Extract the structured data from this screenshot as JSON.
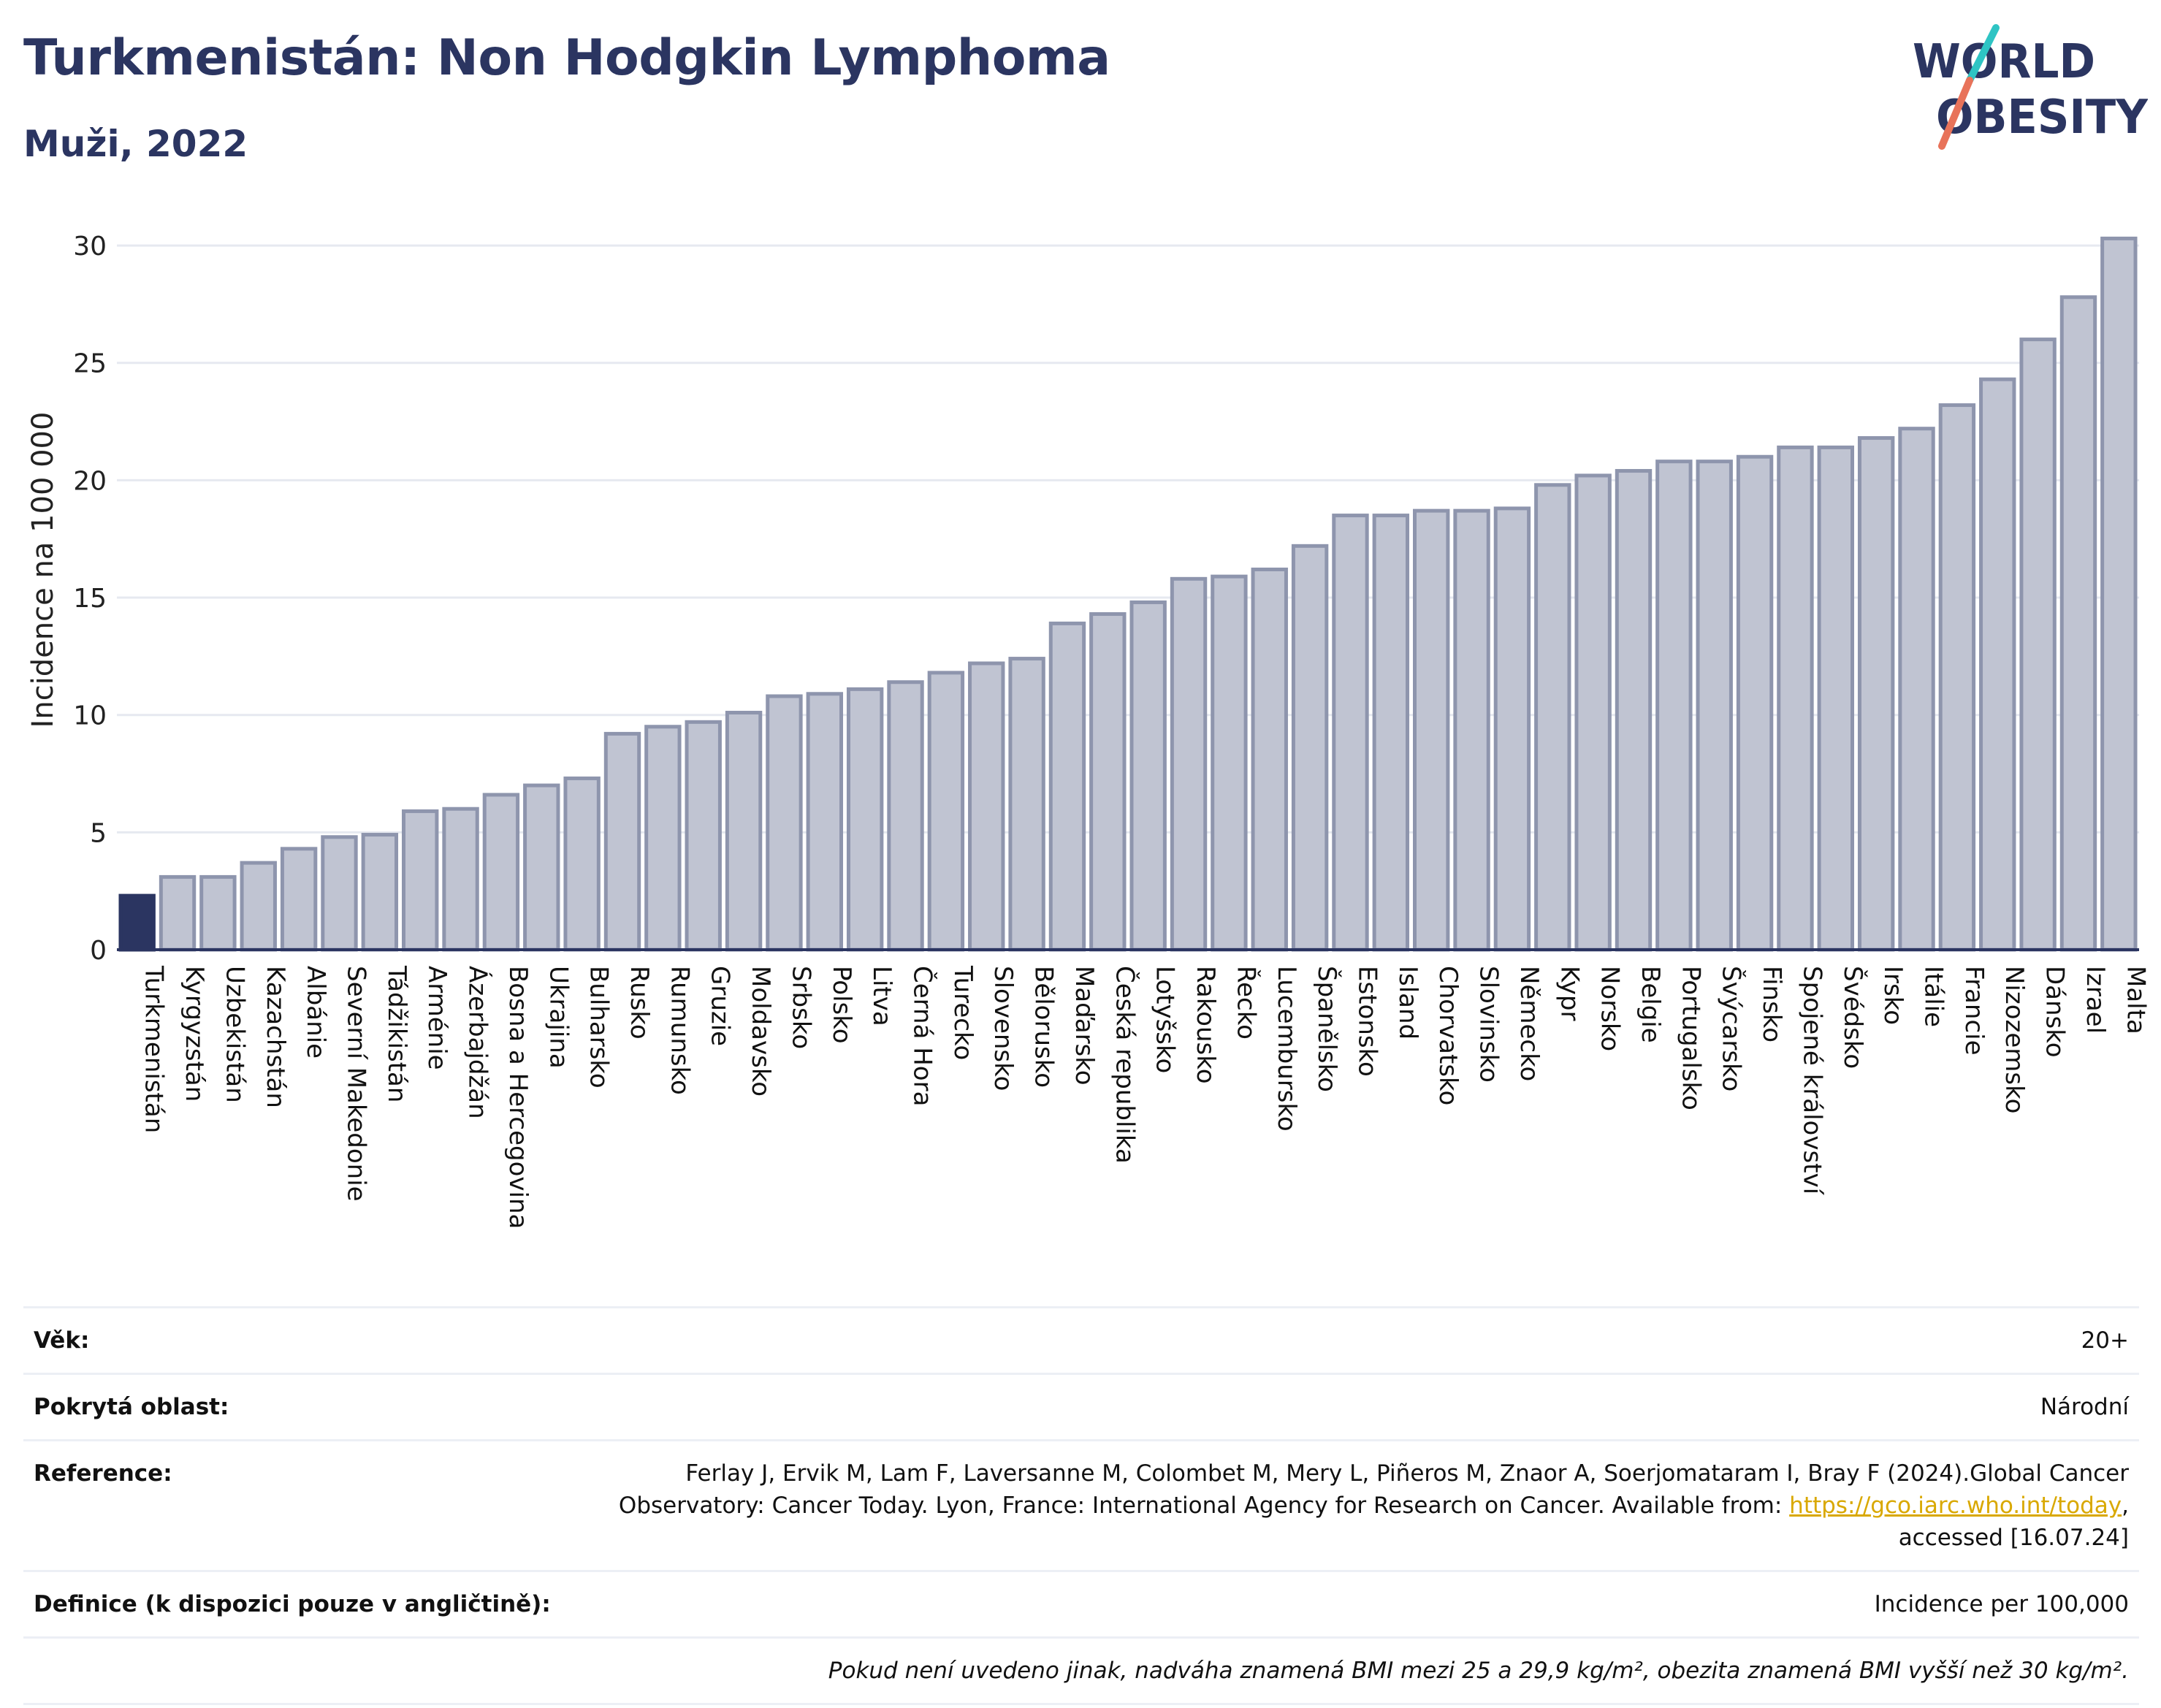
{
  "header": {
    "title": "Turkmenistán: Non Hodgkin Lymphoma",
    "subtitle": "Muži, 2022",
    "logo_text": "WORLD OBESITY"
  },
  "colors": {
    "title": "#2b3561",
    "highlight_bar": "#2b3561",
    "bar_fill": "#c0c4d2",
    "bar_stroke": "#8e95ad",
    "grid": "#e6e9f0",
    "axis": "#2b3561",
    "link": "#d9a800",
    "logo_slash_top": "#2ec4c4",
    "logo_slash_bottom": "#e8735a"
  },
  "chart_data": {
    "type": "bar",
    "title": "Turkmenistán: Non Hodgkin Lymphoma",
    "subtitle": "Muži, 2022",
    "ylabel": "Incidence na 100 000",
    "xlabel": "",
    "ylim": [
      0,
      30.5
    ],
    "yticks": [
      0,
      5,
      10,
      15,
      20,
      25,
      30
    ],
    "grid": true,
    "highlight": "Turkmenistán",
    "categories": [
      "Turkmenistán",
      "Kyrgyzstán",
      "Uzbekistán",
      "Kazachstán",
      "Albánie",
      "Severní Makedonie",
      "Tádžikistán",
      "Arménie",
      "Ázerbajdžán",
      "Bosna a Hercegovina",
      "Ukrajina",
      "Bulharsko",
      "Rusko",
      "Rumunsko",
      "Gruzie",
      "Moldavsko",
      "Srbsko",
      "Polsko",
      "Litva",
      "Černá Hora",
      "Turecko",
      "Slovensko",
      "Bělorusko",
      "Maďarsko",
      "Česká republika",
      "Lotyšsko",
      "Rakousko",
      "Řecko",
      "Lucembursko",
      "Španělsko",
      "Estonsko",
      "Island",
      "Chorvatsko",
      "Slovinsko",
      "Německo",
      "Kypr",
      "Norsko",
      "Belgie",
      "Portugalsko",
      "Švýcarsko",
      "Finsko",
      "Spojené království",
      "Švédsko",
      "Irsko",
      "Itálie",
      "Francie",
      "Nizozemsko",
      "Dánsko",
      "Izrael",
      "Malta"
    ],
    "values": [
      2.3,
      3.1,
      3.1,
      3.7,
      4.3,
      4.8,
      4.9,
      5.9,
      6.0,
      6.6,
      7.0,
      7.3,
      9.2,
      9.5,
      9.7,
      10.1,
      10.8,
      10.9,
      11.1,
      11.4,
      11.8,
      12.2,
      12.4,
      13.9,
      14.3,
      14.8,
      15.8,
      15.9,
      16.2,
      17.2,
      18.5,
      18.5,
      18.7,
      18.7,
      18.8,
      19.8,
      20.2,
      20.4,
      20.8,
      20.8,
      21.0,
      21.4,
      21.4,
      21.8,
      22.2,
      23.2,
      24.3,
      26.0,
      27.8,
      30.3
    ]
  },
  "info": {
    "rows": [
      {
        "label": "Věk:",
        "value": "20+"
      },
      {
        "label": "Pokrytá oblast:",
        "value": "Národní"
      },
      {
        "label": "Reference:",
        "value": "Ferlay J, Ervik M, Lam F, Laversanne M, Colombet M, Mery L, Piñeros M, Znaor A, Soerjomataram I, Bray F (2024).Global Cancer Observatory: Cancer Today. Lyon, France: International Agency for Research on Cancer. Available from:",
        "link": "https://gco.iarc.who.int/today",
        "suffix": ", accessed [16.07.24]"
      },
      {
        "label": "Definice (k dispozici pouze v angličtině):",
        "value": "Incidence per 100,000"
      }
    ],
    "note": "Pokud není uvedeno jinak, nadváha znamená BMI mezi 25 a 29,9 kg/m², obezita znamená BMI vyšší než 30 kg/m²."
  }
}
